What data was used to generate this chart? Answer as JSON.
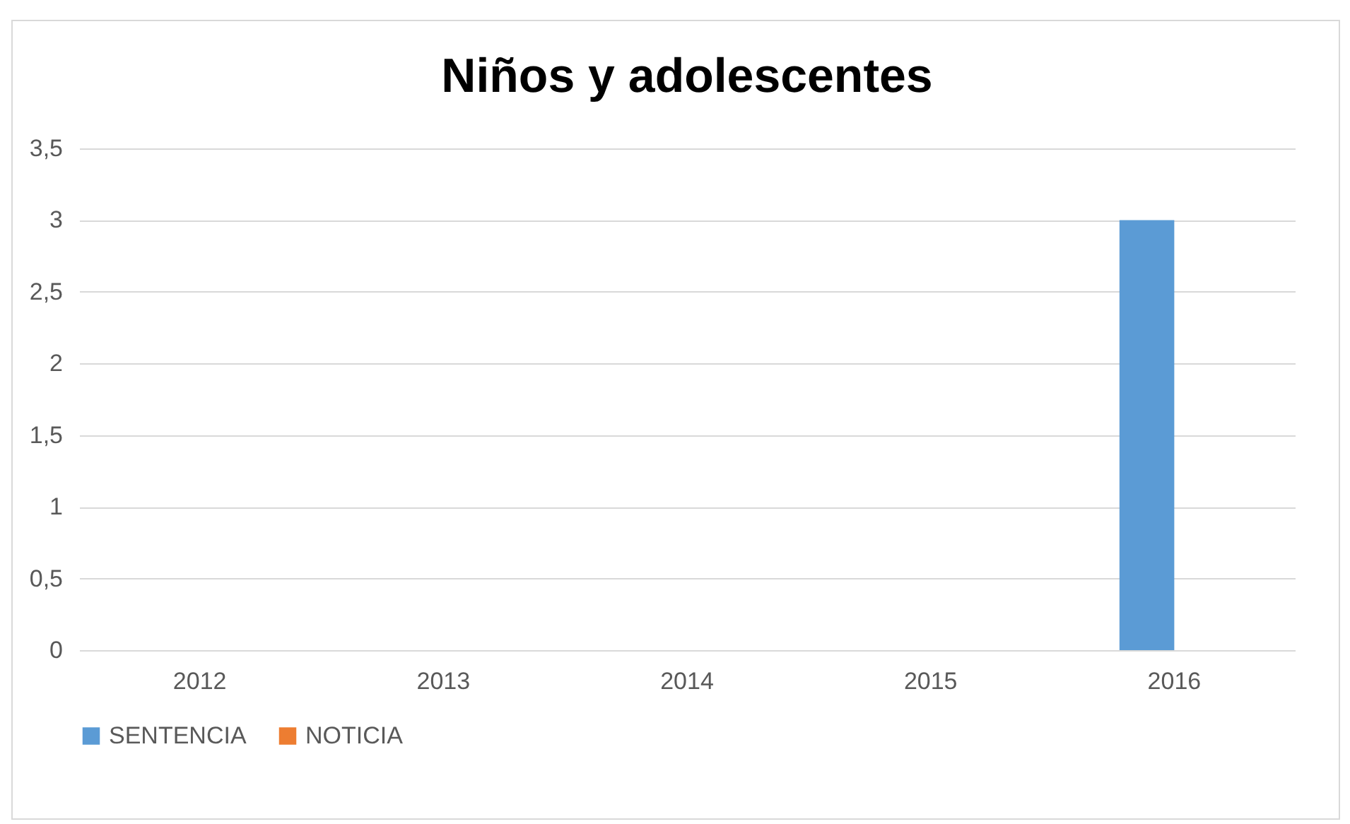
{
  "chart_data": {
    "type": "bar",
    "title": "Niños y adolescentes",
    "categories": [
      "2012",
      "2013",
      "2014",
      "2015",
      "2016"
    ],
    "series": [
      {
        "name": "SENTENCIA",
        "color": "#5b9bd5",
        "values": [
          0,
          0,
          0,
          0,
          3
        ]
      },
      {
        "name": "NOTICIA",
        "color": "#ed7d31",
        "values": [
          0,
          0,
          0,
          0,
          0
        ]
      }
    ],
    "ylim": [
      0,
      3.5
    ],
    "yticks": [
      0,
      {
        "value": 0.5,
        "label": "0,5"
      },
      1,
      {
        "value": 1.5,
        "label": "1,5"
      },
      2,
      {
        "value": 2.5,
        "label": "2,5"
      },
      3,
      {
        "value": 3.5,
        "label": "3,5"
      }
    ],
    "grid": "y",
    "legend": "bottom"
  }
}
